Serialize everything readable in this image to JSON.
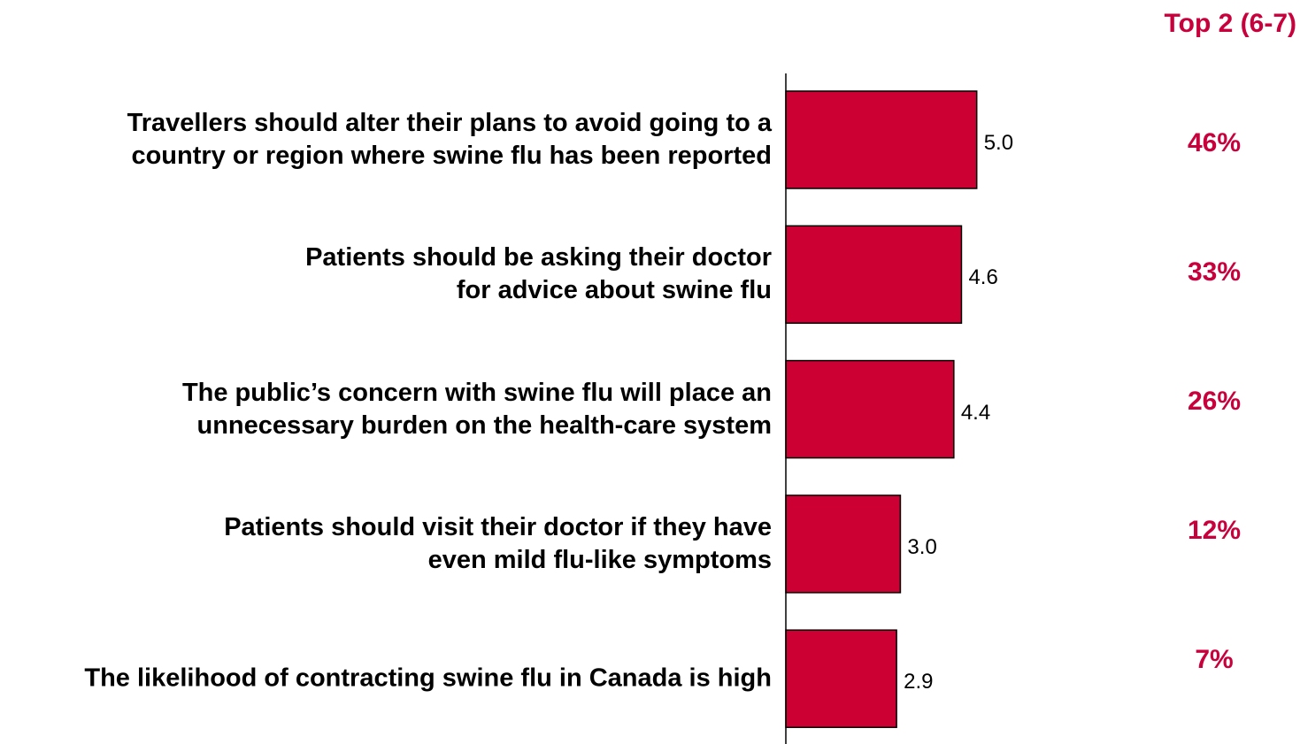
{
  "chart_data": {
    "type": "bar",
    "orientation": "horizontal",
    "categories": [
      "Travellers should alter their plans to avoid going to a\ncountry or region where swine flu has been reported",
      "Patients should be asking their doctor\nfor advice about swine flu",
      "The public’s concern with swine flu will place an\nunnecessary burden on the health-care system",
      "Patients should visit their doctor if they have\neven mild flu-like symptoms",
      "The likelihood of contracting swine flu in Canada is high"
    ],
    "values": [
      5.0,
      4.6,
      4.4,
      3.0,
      2.9
    ],
    "value_labels": [
      "5.0",
      "4.6",
      "4.4",
      "3.0",
      "2.9"
    ],
    "color": "#cc0033",
    "xlim": [
      0,
      7
    ],
    "top2": {
      "title": "Top 2 (6-7)",
      "values": [
        46,
        33,
        26,
        12,
        7
      ],
      "value_labels": [
        "46%",
        "33%",
        "26%",
        "12%",
        "7%"
      ]
    }
  }
}
